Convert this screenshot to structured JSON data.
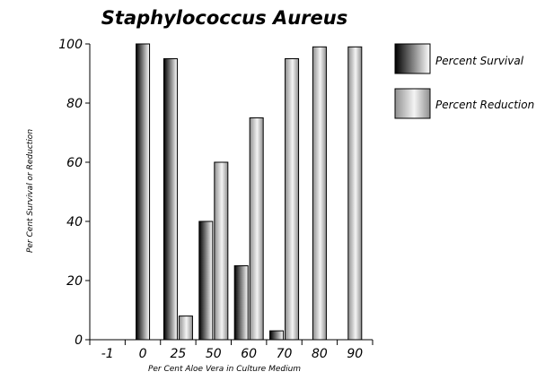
{
  "chart_data": {
    "type": "bar",
    "title": "Staphylococcus Aureus",
    "xlabel": "Per Cent Aloe Vera in Culture Medium",
    "ylabel": "Per Cent Survival or Reduction",
    "categories": [
      "-1",
      "0",
      "25",
      "50",
      "60",
      "70",
      "80",
      "90"
    ],
    "series": [
      {
        "name": "Percent Survival",
        "values": [
          null,
          100,
          95,
          40,
          25,
          3,
          null,
          null
        ]
      },
      {
        "name": "Percent Reduction",
        "values": [
          null,
          null,
          8,
          60,
          75,
          95,
          99,
          99
        ]
      }
    ],
    "ylim": [
      0,
      100
    ],
    "yticks": [
      "0",
      "20",
      "40",
      "60",
      "80",
      "100"
    ],
    "grid": false,
    "legend_position": "top-right",
    "colors": {
      "survival_dark": "#000000",
      "survival_light": "#ffffff",
      "reduction_dark": "#8f8f8f",
      "reduction_light": "#f4f4f4"
    }
  }
}
